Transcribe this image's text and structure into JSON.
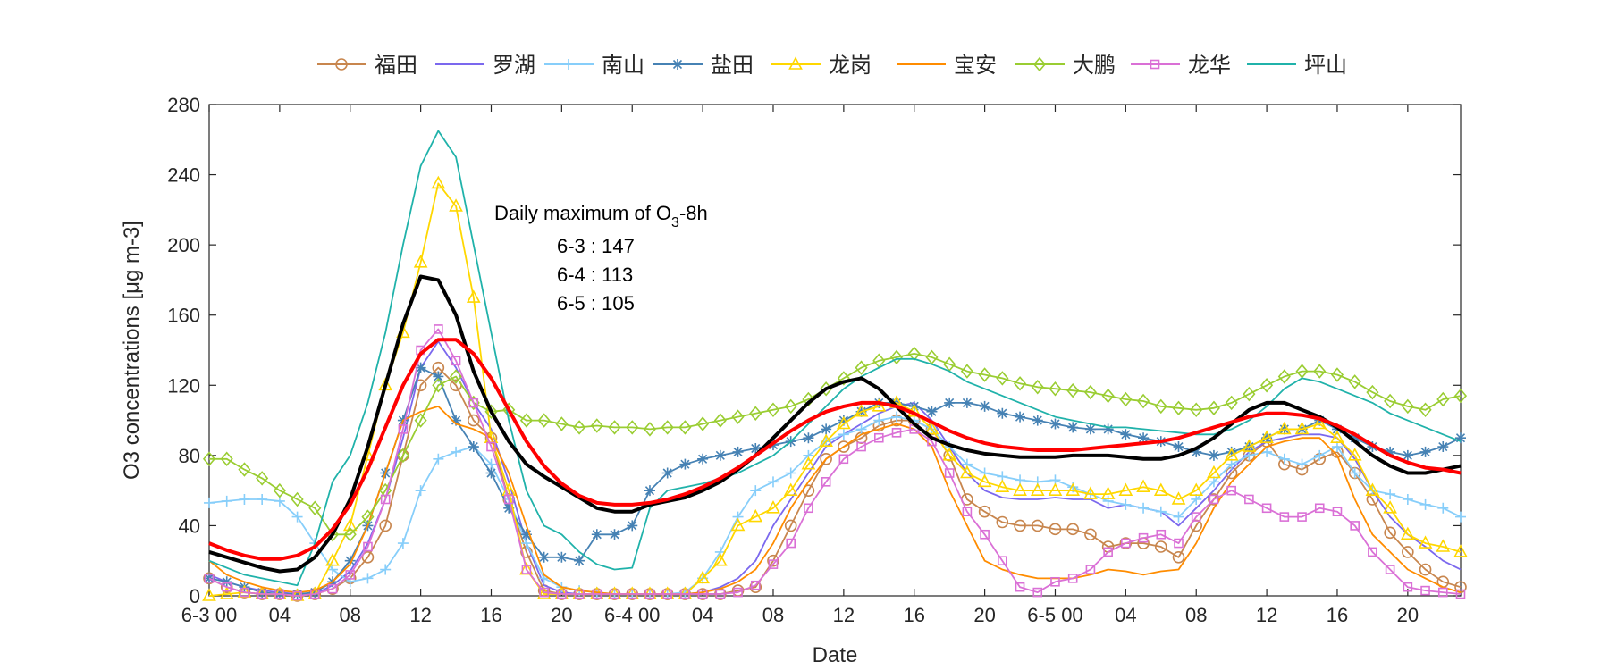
{
  "chart_data": {
    "type": "line",
    "xlabel": "Date",
    "ylabel": "O3 concentrations [μg m-3]",
    "ylim": [
      0,
      280
    ],
    "yticks": [
      0,
      40,
      80,
      120,
      160,
      200,
      240,
      280
    ],
    "xlim": [
      0,
      71
    ],
    "xticks": [
      {
        "x": 0,
        "label": "6-3 00"
      },
      {
        "x": 4,
        "label": "04"
      },
      {
        "x": 8,
        "label": "08"
      },
      {
        "x": 12,
        "label": "12"
      },
      {
        "x": 16,
        "label": "16"
      },
      {
        "x": 20,
        "label": "20"
      },
      {
        "x": 24,
        "label": "6-4 00"
      },
      {
        "x": 28,
        "label": "04"
      },
      {
        "x": 32,
        "label": "08"
      },
      {
        "x": 36,
        "label": "12"
      },
      {
        "x": 40,
        "label": "16"
      },
      {
        "x": 44,
        "label": "20"
      },
      {
        "x": 48,
        "label": "6-5 00"
      },
      {
        "x": 52,
        "label": "04"
      },
      {
        "x": 56,
        "label": "08"
      },
      {
        "x": 60,
        "label": "12"
      },
      {
        "x": 64,
        "label": "16"
      },
      {
        "x": 68,
        "label": "20"
      }
    ],
    "annotation": {
      "title": "Daily maximum of O",
      "title_sub": "3",
      "title_suffix": "-8h",
      "lines": [
        "6-3 : 147",
        "6-4 : 113",
        "6-5 : 105"
      ]
    },
    "series": [
      {
        "name": "福田",
        "color": "#C8864E",
        "marker": "circle",
        "legend": true,
        "values": [
          10,
          5,
          2,
          1,
          1,
          0,
          1,
          4,
          10,
          22,
          40,
          80,
          120,
          130,
          120,
          100,
          90,
          55,
          25,
          3,
          1,
          1,
          1,
          1,
          1,
          1,
          1,
          1,
          1,
          1,
          3,
          5,
          20,
          40,
          60,
          78,
          85,
          90,
          97,
          100,
          100,
          95,
          80,
          55,
          48,
          42,
          40,
          40,
          38,
          38,
          35,
          28,
          30,
          30,
          28,
          22,
          40,
          55,
          70,
          80,
          88,
          75,
          72,
          78,
          82,
          70,
          55,
          36,
          25,
          15,
          8,
          5
        ]
      },
      {
        "name": "罗湖",
        "color": "#7B68EE",
        "marker": "none",
        "legend": true,
        "values": [
          12,
          8,
          5,
          3,
          2,
          1,
          1,
          6,
          14,
          30,
          55,
          90,
          130,
          145,
          130,
          110,
          95,
          65,
          30,
          6,
          2,
          1,
          1,
          1,
          1,
          1,
          1,
          1,
          2,
          5,
          10,
          20,
          40,
          55,
          70,
          85,
          92,
          98,
          104,
          108,
          110,
          100,
          85,
          70,
          60,
          56,
          55,
          55,
          56,
          55,
          55,
          50,
          52,
          50,
          48,
          40,
          50,
          60,
          72,
          82,
          88,
          90,
          92,
          92,
          90,
          78,
          60,
          45,
          35,
          28,
          20,
          15
        ]
      },
      {
        "name": "南山",
        "color": "#87CEFA",
        "marker": "plus",
        "legend": true,
        "values": [
          53,
          54,
          55,
          55,
          54,
          45,
          30,
          15,
          8,
          10,
          15,
          30,
          60,
          78,
          82,
          85,
          75,
          55,
          30,
          10,
          5,
          3,
          2,
          1,
          1,
          1,
          1,
          2,
          10,
          25,
          45,
          60,
          65,
          70,
          80,
          88,
          92,
          95,
          100,
          102,
          100,
          95,
          85,
          75,
          70,
          68,
          66,
          65,
          66,
          62,
          58,
          54,
          52,
          50,
          48,
          45,
          55,
          65,
          75,
          80,
          82,
          78,
          75,
          80,
          85,
          70,
          60,
          58,
          55,
          52,
          50,
          45
        ]
      },
      {
        "name": "盐田",
        "color": "#4682B4",
        "marker": "star",
        "legend": true,
        "values": [
          10,
          8,
          5,
          2,
          1,
          1,
          2,
          8,
          20,
          40,
          70,
          100,
          130,
          125,
          100,
          85,
          70,
          50,
          35,
          22,
          22,
          20,
          35,
          35,
          40,
          60,
          70,
          75,
          78,
          80,
          82,
          84,
          86,
          88,
          90,
          95,
          100,
          105,
          110,
          110,
          108,
          105,
          110,
          110,
          108,
          104,
          102,
          100,
          98,
          96,
          95,
          95,
          92,
          90,
          88,
          85,
          82,
          80,
          82,
          85,
          90,
          95,
          95,
          100,
          95,
          90,
          85,
          82,
          80,
          82,
          85,
          90
        ]
      },
      {
        "name": "龙岗",
        "color": "#FFD700",
        "marker": "triangle",
        "legend": true,
        "values": [
          0,
          1,
          2,
          1,
          1,
          0,
          1,
          20,
          40,
          80,
          120,
          150,
          190,
          235,
          222,
          170,
          90,
          60,
          15,
          1,
          1,
          1,
          1,
          1,
          1,
          1,
          1,
          1,
          10,
          20,
          40,
          45,
          50,
          60,
          75,
          88,
          98,
          105,
          108,
          110,
          105,
          95,
          80,
          70,
          65,
          62,
          60,
          60,
          60,
          60,
          58,
          58,
          60,
          62,
          60,
          55,
          60,
          70,
          80,
          85,
          90,
          95,
          95,
          98,
          90,
          80,
          60,
          50,
          35,
          30,
          28,
          25
        ]
      },
      {
        "name": "宝安",
        "color": "#FF8C00",
        "marker": "none",
        "legend": true,
        "values": [
          20,
          12,
          8,
          5,
          3,
          2,
          3,
          8,
          18,
          40,
          70,
          100,
          105,
          108,
          98,
          95,
          90,
          70,
          40,
          12,
          5,
          3,
          2,
          1,
          1,
          1,
          1,
          1,
          2,
          4,
          8,
          15,
          30,
          50,
          65,
          78,
          85,
          92,
          95,
          98,
          95,
          85,
          60,
          40,
          20,
          15,
          12,
          10,
          10,
          10,
          12,
          15,
          14,
          12,
          14,
          15,
          30,
          50,
          65,
          75,
          85,
          88,
          90,
          90,
          80,
          55,
          35,
          25,
          15,
          10,
          5,
          2
        ]
      },
      {
        "name": "大鹏",
        "color": "#9ACD32",
        "marker": "diamond",
        "legend": true,
        "values": [
          78,
          78,
          72,
          67,
          60,
          55,
          50,
          35,
          35,
          45,
          60,
          80,
          100,
          120,
          125,
          110,
          105,
          106,
          100,
          100,
          98,
          96,
          97,
          96,
          96,
          95,
          96,
          96,
          98,
          100,
          102,
          104,
          106,
          108,
          112,
          118,
          124,
          130,
          134,
          136,
          138,
          136,
          132,
          128,
          126,
          124,
          121,
          119,
          118,
          117,
          116,
          114,
          112,
          111,
          108,
          107,
          106,
          107,
          110,
          115,
          120,
          125,
          128,
          128,
          126,
          122,
          116,
          111,
          108,
          106,
          112,
          114
        ]
      },
      {
        "name": "龙华",
        "color": "#DA70D6",
        "marker": "square",
        "legend": true,
        "values": [
          10,
          5,
          2,
          1,
          1,
          0,
          1,
          4,
          12,
          28,
          55,
          95,
          140,
          152,
          134,
          110,
          85,
          55,
          15,
          2,
          1,
          1,
          1,
          1,
          1,
          1,
          1,
          1,
          1,
          1,
          2,
          6,
          18,
          30,
          50,
          65,
          78,
          85,
          90,
          93,
          95,
          88,
          70,
          48,
          35,
          20,
          5,
          2,
          8,
          10,
          15,
          25,
          30,
          33,
          35,
          30,
          45,
          55,
          60,
          55,
          50,
          45,
          45,
          50,
          48,
          40,
          25,
          15,
          5,
          3,
          2,
          1
        ]
      },
      {
        "name": "坪山",
        "color": "#20B2AA",
        "marker": "none",
        "legend": true,
        "values": [
          20,
          16,
          12,
          10,
          8,
          6,
          30,
          65,
          80,
          110,
          150,
          200,
          245,
          265,
          250,
          200,
          150,
          100,
          60,
          40,
          35,
          25,
          18,
          15,
          16,
          50,
          60,
          62,
          64,
          67,
          70,
          75,
          80,
          88,
          98,
          108,
          118,
          125,
          130,
          135,
          135,
          132,
          128,
          122,
          118,
          114,
          110,
          106,
          102,
          100,
          98,
          96,
          96,
          95,
          94,
          93,
          92,
          92,
          95,
          100,
          108,
          118,
          124,
          122,
          118,
          114,
          110,
          104,
          100,
          96,
          92,
          88
        ]
      },
      {
        "name": "mean",
        "color": "#000000",
        "marker": "none",
        "legend": false,
        "width": 4,
        "values": [
          25,
          22,
          19,
          16,
          14,
          15,
          22,
          35,
          55,
          85,
          120,
          155,
          182,
          180,
          160,
          128,
          105,
          88,
          75,
          68,
          62,
          56,
          50,
          48,
          48,
          52,
          54,
          56,
          60,
          65,
          72,
          80,
          90,
          100,
          110,
          118,
          122,
          124,
          118,
          108,
          98,
          90,
          86,
          83,
          81,
          80,
          79,
          79,
          79,
          80,
          80,
          80,
          79,
          78,
          78,
          80,
          84,
          90,
          98,
          106,
          110,
          110,
          106,
          102,
          96,
          88,
          80,
          74,
          70,
          70,
          72,
          74
        ]
      },
      {
        "name": "smooth",
        "color": "#FF0000",
        "marker": "none",
        "legend": false,
        "width": 4,
        "values": [
          30,
          26,
          23,
          21,
          21,
          23,
          28,
          38,
          52,
          72,
          96,
          120,
          138,
          146,
          146,
          138,
          124,
          106,
          88,
          74,
          64,
          57,
          53,
          52,
          52,
          53,
          55,
          58,
          62,
          67,
          73,
          80,
          87,
          94,
          100,
          105,
          108,
          110,
          110,
          108,
          104,
          99,
          94,
          90,
          87,
          85,
          84,
          83,
          83,
          83,
          84,
          85,
          86,
          87,
          88,
          90,
          93,
          96,
          99,
          102,
          104,
          104,
          103,
          101,
          97,
          92,
          86,
          80,
          76,
          73,
          72,
          70
        ]
      }
    ]
  }
}
